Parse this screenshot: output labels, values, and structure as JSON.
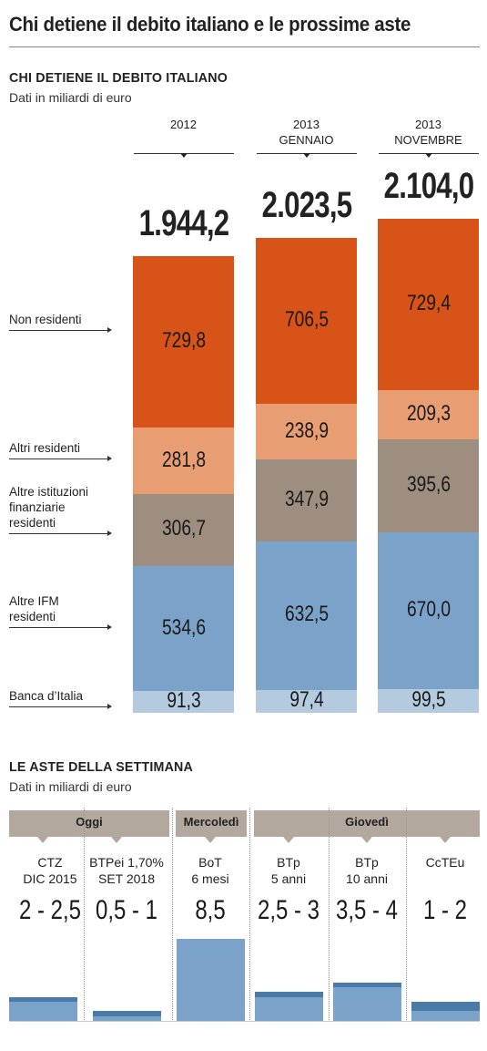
{
  "title": "Chi detiene il debito italiano e le prossime aste",
  "colors": {
    "non_residenti": "#d75317",
    "altri_residenti": "#e99d72",
    "altre_istituzioni": "#9e8e80",
    "altre_ifm": "#7ba3c9",
    "banca_italia": "#b4cadf",
    "auction_bar": "#7ba3c9",
    "auction_bar_max": "#4a7aa8",
    "day_band": "#b3a89d"
  },
  "holders_section": {
    "title": "CHI DETIENE IL DEBITO ITALIANO",
    "subtitle": "Dati in miliardi di euro"
  },
  "auctions_section": {
    "title": "LE ASTE DELLA SETTIMANA",
    "subtitle": "Dati in miliardi di euro",
    "days": [
      "Oggi",
      "Mercoledì",
      "Giovedì"
    ]
  },
  "chart_data": [
    {
      "type": "bar",
      "stacked": true,
      "title": "CHI DETIENE IL DEBITO ITALIANO",
      "subtitle": "Dati in miliardi di euro",
      "categories": [
        {
          "line1": "2012",
          "line2": ""
        },
        {
          "line1": "2013",
          "line2": "GENNAIO"
        },
        {
          "line1": "2013",
          "line2": "NOVEMBRE"
        }
      ],
      "totals": [
        "1.944,2",
        "2.023,5",
        "2.104,0"
      ],
      "total_values": [
        1944.2,
        2023.5,
        2104.0
      ],
      "series": [
        {
          "name": "Banca d’Italia",
          "label_lines": [
            "Banca d’Italia"
          ],
          "color_key": "banca_italia",
          "values": [
            91.3,
            97.4,
            99.5
          ],
          "labels": [
            "91,3",
            "97,4",
            "99,5"
          ]
        },
        {
          "name": "Altre IFM residenti",
          "label_lines": [
            "Altre IFM",
            "residenti"
          ],
          "color_key": "altre_ifm",
          "values": [
            534.6,
            632.5,
            670.0
          ],
          "labels": [
            "534,6",
            "632,5",
            "670,0"
          ]
        },
        {
          "name": "Altre istituzioni finanziarie residenti",
          "label_lines": [
            "Altre istituzioni",
            "finanziarie",
            "residenti"
          ],
          "color_key": "altre_istituzioni",
          "values": [
            306.7,
            347.9,
            395.6
          ],
          "labels": [
            "306,7",
            "347,9",
            "395,6"
          ]
        },
        {
          "name": "Altri residenti",
          "label_lines": [
            "Altri residenti"
          ],
          "color_key": "altri_residenti",
          "values": [
            281.8,
            238.9,
            209.3
          ],
          "labels": [
            "281,8",
            "238,9",
            "209,3"
          ]
        },
        {
          "name": "Non residenti",
          "label_lines": [
            "Non residenti"
          ],
          "color_key": "non_residenti",
          "values": [
            729.8,
            706.5,
            729.4
          ],
          "labels": [
            "729,8",
            "706,5",
            "729,4"
          ]
        }
      ]
    },
    {
      "type": "bar",
      "title": "LE ASTE DELLA SETTIMANA",
      "subtitle": "Dati in miliardi di euro",
      "categories": [
        {
          "name_lines": [
            "CTZ",
            "DIC 2015"
          ],
          "amount": "2 - 2,5",
          "min": 2,
          "max": 2.5,
          "day": "Oggi"
        },
        {
          "name_lines": [
            "BTPei 1,70%",
            "SET 2018"
          ],
          "amount": "0,5 - 1",
          "min": 0.5,
          "max": 1,
          "day": "Oggi"
        },
        {
          "name_lines": [
            "BoT",
            "6 mesi"
          ],
          "amount": "8,5",
          "min": 8.5,
          "max": 8.5,
          "day": "Mercoledì"
        },
        {
          "name_lines": [
            "BTp",
            "5 anni"
          ],
          "amount": "2,5 - 3",
          "min": 2.5,
          "max": 3,
          "day": "Giovedì"
        },
        {
          "name_lines": [
            "BTp",
            "10 anni"
          ],
          "amount": "3,5 - 4",
          "min": 3.5,
          "max": 4,
          "day": "Giovedì"
        },
        {
          "name_lines": [
            "CcTEu"
          ],
          "amount": "1 - 2",
          "min": 1,
          "max": 2,
          "day": "Giovedì"
        }
      ]
    }
  ]
}
